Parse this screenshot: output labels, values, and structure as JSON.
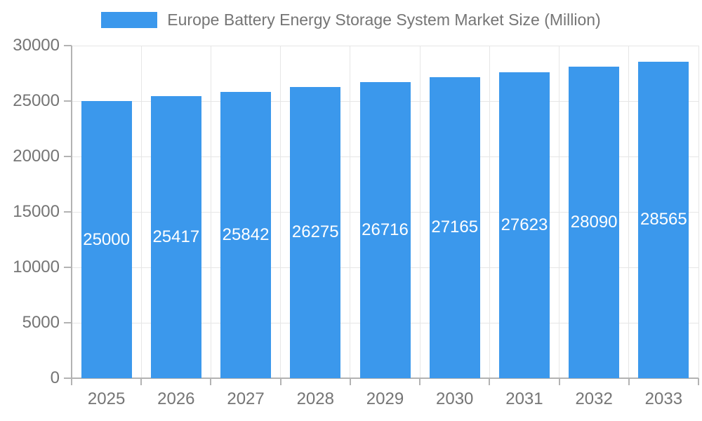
{
  "chart_data": {
    "type": "bar",
    "title": "Europe Battery Energy Storage System Market Size (Million)",
    "categories": [
      "2025",
      "2026",
      "2027",
      "2028",
      "2029",
      "2030",
      "2031",
      "2032",
      "2033"
    ],
    "values": [
      25000,
      25417,
      25842,
      26275,
      26716,
      27165,
      27623,
      28090,
      28565
    ],
    "bar_value_labels": [
      "25000",
      "25417",
      "25842",
      "26275",
      "26716",
      "27165",
      "27623",
      "28090",
      "28565"
    ],
    "xlabel": "",
    "ylabel": "",
    "ylim": [
      0,
      30000
    ],
    "yticks": [
      0,
      5000,
      10000,
      15000,
      20000,
      25000,
      30000
    ],
    "ytick_labels": [
      "0",
      "5000",
      "10000",
      "15000",
      "20000",
      "25000",
      "30000"
    ],
    "grid": true,
    "legend_position": "top"
  },
  "colors": {
    "bar": "#3B98EC",
    "bar_value_label": "#FFFFFF",
    "axis_text": "#757575",
    "legend_text": "#757575",
    "gridline": "#E6E6E6",
    "axis_line": "#B3B3B3",
    "background": "#FFFFFF"
  }
}
